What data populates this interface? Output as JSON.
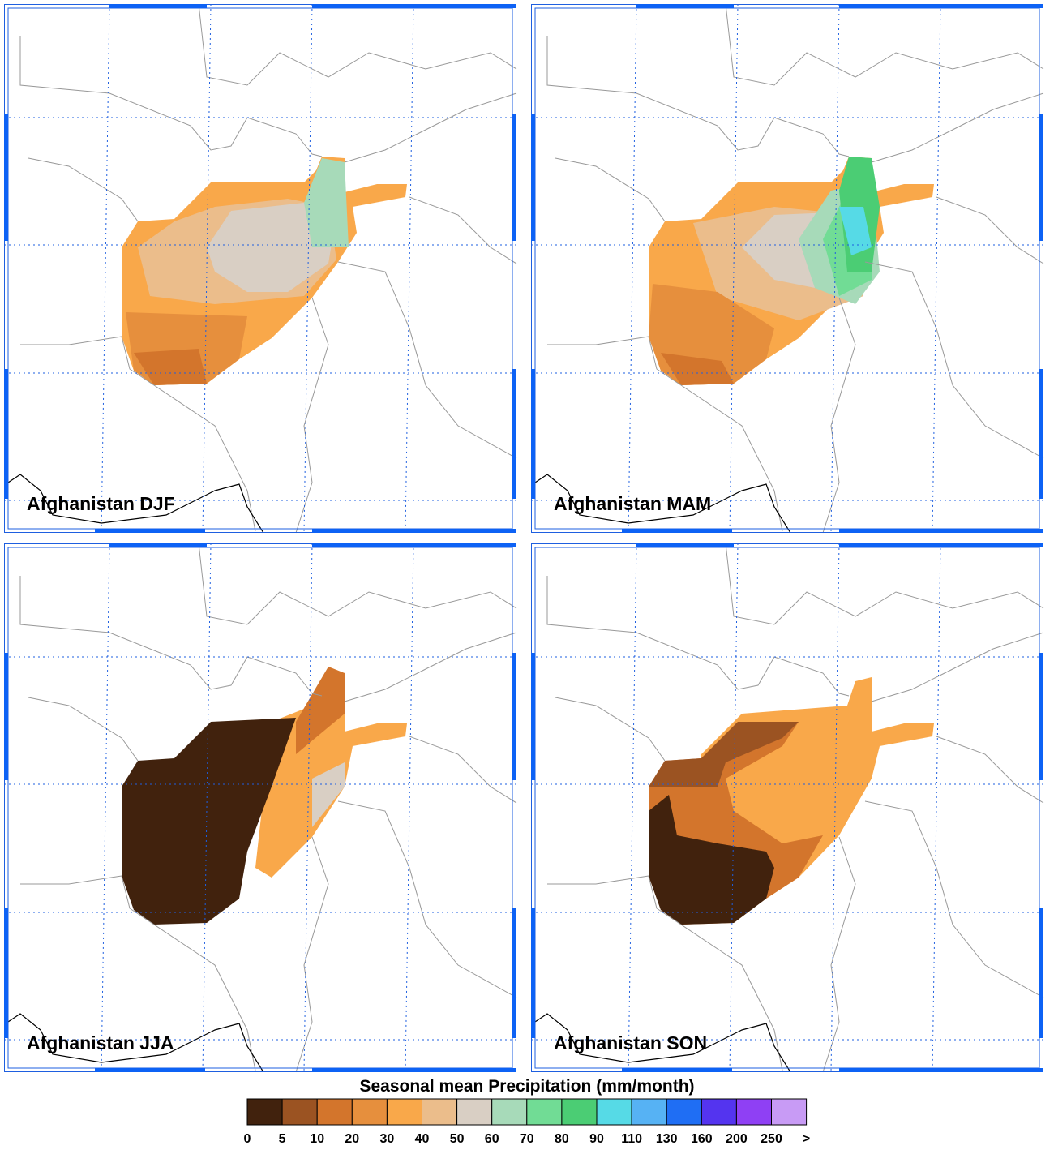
{
  "panels": [
    {
      "label": "Afghanistan DJF"
    },
    {
      "label": "Afghanistan MAM"
    },
    {
      "label": "Afghanistan JJA"
    },
    {
      "label": "Afghanistan SON"
    }
  ],
  "legend": {
    "title": "Seasonal mean Precipitation (mm/month)",
    "labels": [
      0,
      5,
      10,
      20,
      30,
      40,
      50,
      60,
      70,
      80,
      90,
      110,
      130,
      160,
      200,
      250,
      ">"
    ],
    "colors": [
      "#41220d",
      "#9b5322",
      "#d3752c",
      "#e68f3d",
      "#f9a84a",
      "#ebbd8b",
      "#d9cfc4",
      "#a7dab9",
      "#71dc95",
      "#4bcd74",
      "#56dae6",
      "#56b2f4",
      "#1f6ef4",
      "#5434ef",
      "#8f40f4",
      "#c89bf5"
    ]
  }
}
